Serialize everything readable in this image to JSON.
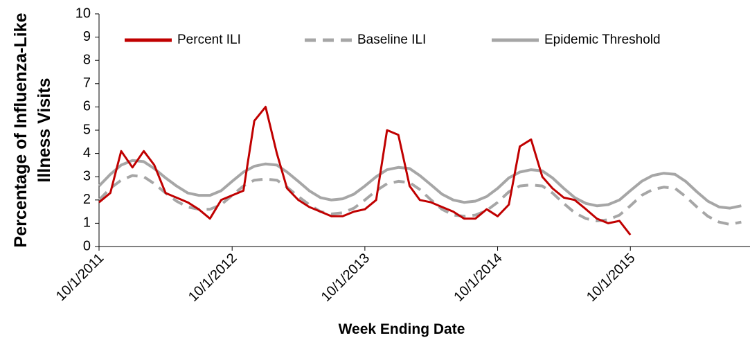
{
  "chart_data": {
    "type": "line",
    "y_label": [
      "Percentage of Influenza-Like",
      "Illness Visits"
    ],
    "x_label": "Week Ending Date",
    "x": [
      "2011-10-01",
      "2011-11-01",
      "2011-12-01",
      "2012-01-01",
      "2012-02-01",
      "2012-03-01",
      "2012-04-01",
      "2012-05-01",
      "2012-06-01",
      "2012-07-01",
      "2012-08-01",
      "2012-09-01",
      "2012-10-01",
      "2012-11-01",
      "2012-12-01",
      "2013-01-01",
      "2013-02-01",
      "2013-03-01",
      "2013-04-01",
      "2013-05-01",
      "2013-06-01",
      "2013-07-01",
      "2013-08-01",
      "2013-09-01",
      "2013-10-01",
      "2013-11-01",
      "2013-12-01",
      "2014-01-01",
      "2014-02-01",
      "2014-03-01",
      "2014-04-01",
      "2014-05-01",
      "2014-06-01",
      "2014-07-01",
      "2014-08-01",
      "2014-09-01",
      "2014-10-01",
      "2014-11-01",
      "2014-12-01",
      "2015-01-01",
      "2015-02-01",
      "2015-03-01",
      "2015-04-01",
      "2015-05-01",
      "2015-06-01",
      "2015-07-01",
      "2015-08-01",
      "2015-09-01",
      "2015-10-01",
      "2015-11-01",
      "2015-12-01",
      "2016-01-01",
      "2016-02-01",
      "2016-03-01",
      "2016-04-01",
      "2016-05-01",
      "2016-06-01",
      "2016-07-01",
      "2016-08-01"
    ],
    "series": [
      {
        "name": "Percent ILI",
        "color": "#c00000",
        "dash": false,
        "values": [
          1.9,
          2.3,
          4.1,
          3.4,
          4.1,
          3.5,
          2.3,
          2.1,
          1.9,
          1.6,
          1.2,
          2.0,
          2.2,
          2.4,
          5.4,
          6.0,
          4.0,
          2.5,
          2.0,
          1.7,
          1.5,
          1.3,
          1.3,
          1.5,
          1.6,
          2.0,
          5.0,
          4.8,
          2.6,
          2.0,
          1.9,
          1.7,
          1.5,
          1.2,
          1.2,
          1.6,
          1.3,
          1.8,
          4.3,
          4.6,
          3.0,
          2.5,
          2.1,
          2.0,
          1.6,
          1.2,
          1.0,
          1.1,
          0.5,
          null,
          null,
          null,
          null,
          null,
          null,
          null,
          null,
          null,
          null
        ]
      },
      {
        "name": "Baseline ILI",
        "color": "#a6a6a6",
        "dash": true,
        "values": [
          2.0,
          2.5,
          2.85,
          3.05,
          3.0,
          2.7,
          2.3,
          1.95,
          1.7,
          1.6,
          1.6,
          1.8,
          2.2,
          2.6,
          2.85,
          2.9,
          2.85,
          2.55,
          2.15,
          1.8,
          1.5,
          1.4,
          1.45,
          1.65,
          2.0,
          2.4,
          2.7,
          2.8,
          2.75,
          2.45,
          2.0,
          1.6,
          1.35,
          1.3,
          1.35,
          1.55,
          1.9,
          2.35,
          2.6,
          2.65,
          2.6,
          2.3,
          1.85,
          1.45,
          1.2,
          1.1,
          1.15,
          1.35,
          1.75,
          2.2,
          2.45,
          2.55,
          2.5,
          2.15,
          1.7,
          1.3,
          1.05,
          0.95,
          1.05
        ]
      },
      {
        "name": "Epidemic Threshold",
        "color": "#a6a6a6",
        "dash": false,
        "values": [
          2.6,
          3.1,
          3.5,
          3.7,
          3.65,
          3.35,
          2.95,
          2.6,
          2.3,
          2.2,
          2.2,
          2.4,
          2.8,
          3.2,
          3.45,
          3.55,
          3.5,
          3.2,
          2.8,
          2.4,
          2.1,
          2.0,
          2.05,
          2.25,
          2.6,
          3.0,
          3.3,
          3.4,
          3.35,
          3.05,
          2.65,
          2.25,
          2.0,
          1.9,
          1.95,
          2.15,
          2.5,
          2.95,
          3.2,
          3.3,
          3.25,
          2.95,
          2.5,
          2.1,
          1.85,
          1.75,
          1.8,
          2.0,
          2.4,
          2.8,
          3.05,
          3.15,
          3.1,
          2.8,
          2.35,
          1.95,
          1.7,
          1.65,
          1.75
        ]
      }
    ],
    "xlim": [
      "2011-10-01",
      "2016-08-25"
    ],
    "xticks": [
      {
        "value": "2011-10-01",
        "label": "10/1/2011"
      },
      {
        "value": "2012-10-01",
        "label": "10/1/2012"
      },
      {
        "value": "2013-10-01",
        "label": "10/1/2013"
      },
      {
        "value": "2014-10-01",
        "label": "10/1/2014"
      },
      {
        "value": "2015-10-01",
        "label": "10/1/2015"
      }
    ],
    "ylim": [
      0,
      10
    ],
    "yticks": [
      0,
      1,
      2,
      3,
      4,
      5,
      6,
      7,
      8,
      9,
      10
    ],
    "legend": "top"
  }
}
